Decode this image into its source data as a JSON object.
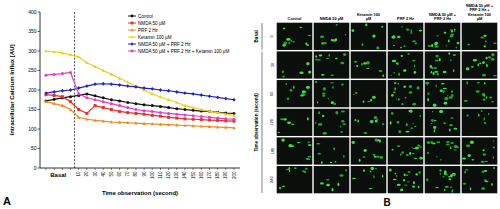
{
  "panel_labels": [
    "A",
    "B"
  ],
  "chart_data": {
    "type": "line",
    "x_label": "Time observation (second)",
    "y_label": "Intracellular Calcium Influx [AU]",
    "categories": [
      null,
      null,
      null,
      null,
      "10",
      "20",
      "30",
      "40",
      "50",
      "60",
      "70",
      "80",
      "90",
      "100",
      "110",
      "120",
      "130",
      "140",
      "150",
      "160",
      "170",
      "180",
      "190",
      "200"
    ],
    "annotation": {
      "text": "Basal",
      "from": 0,
      "to": 3
    },
    "reference_line": {
      "x": 3.5
    },
    "ylim": [
      0,
      400
    ],
    "yticks": [
      0,
      50,
      100,
      150,
      200,
      250,
      300,
      350,
      400
    ],
    "grid": false,
    "legend": "upper right",
    "series": [
      {
        "name": "Control",
        "color": "#111111",
        "marker": "circle",
        "line_style": "solid",
        "values": [
          172,
          176,
          180,
          183,
          186,
          190,
          185,
          180,
          175,
          172,
          168,
          165,
          162,
          160,
          158,
          155,
          152,
          150,
          148,
          146,
          145,
          143,
          141,
          140
        ]
      },
      {
        "name": "NMDA 50 µM",
        "color": "#e8302a",
        "marker": "square",
        "line_style": "solid",
        "values": [
          188,
          186,
          183,
          170,
          150,
          140,
          160,
          155,
          150,
          145,
          142,
          140,
          138,
          135,
          133,
          130,
          128,
          126,
          125,
          124,
          123,
          122,
          121,
          120
        ]
      },
      {
        "name": "PRF 2 Hz",
        "color": "#f08a1c",
        "marker": "triangle",
        "line_style": "solid",
        "values": [
          170,
          165,
          160,
          150,
          130,
          125,
          122,
          120,
          118,
          117,
          116,
          115,
          114,
          113,
          112,
          111,
          110,
          109,
          108,
          107,
          106,
          105,
          104,
          103
        ]
      },
      {
        "name": "Ketamin 100 µM",
        "color": "#f2cf12",
        "marker": "triangle",
        "line_style": "solid",
        "values": [
          300,
          298,
          295,
          290,
          285,
          270,
          260,
          250,
          240,
          230,
          220,
          210,
          200,
          190,
          182,
          175,
          168,
          160,
          155,
          150,
          145,
          142,
          138,
          135
        ]
      },
      {
        "name": "NMDA 50 µM + PRF 2 Hz",
        "color": "#2323c8",
        "marker": "diamond",
        "line_style": "solid",
        "values": [
          192,
          195,
          198,
          200,
          205,
          210,
          215,
          216,
          215,
          213,
          210,
          208,
          205,
          203,
          200,
          198,
          195,
          192,
          190,
          187,
          184,
          181,
          178,
          175
        ]
      },
      {
        "name": "NMDA 50 µM + PRF 2 Hz + Ketamin 100 µM",
        "color": "#e040c0",
        "marker": "circle",
        "line_style": "solid",
        "values": [
          238,
          240,
          242,
          245,
          190,
          180,
          175,
          170,
          165,
          160,
          155,
          150,
          147,
          145,
          142,
          140,
          138,
          136,
          134,
          132,
          130,
          128,
          126,
          125
        ]
      }
    ]
  },
  "image_grid": {
    "columns": [
      "Control",
      "NMDA 50 µM",
      "Ketamin 100 µM",
      "PRF 2 Hz",
      "NMDA 50 µM + PRF 2 Hz",
      "NMDA 50 µM + PRF 2 Hz + Ketamin 100 µM"
    ],
    "rows": [
      "0",
      "30",
      "60",
      "120",
      "180",
      "240"
    ],
    "side_labels": [
      "Basal",
      "Time observation (second)"
    ]
  }
}
